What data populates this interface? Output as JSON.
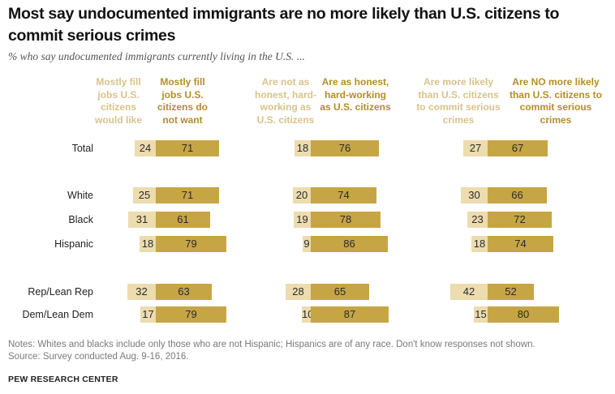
{
  "chart_data": {
    "type": "bar",
    "title": "Most say undocumented immigrants are no more likely than U.S. citizens to commit serious crimes",
    "subtitle": "% who say undocumented immigrants currently living in the U.S. ...",
    "categories": [
      "Total",
      "White",
      "Black",
      "Hispanic",
      "Rep/Lean Rep",
      "Dem/Lean Dem"
    ],
    "panels": [
      {
        "series": [
          {
            "name": "Mostly fill jobs U.S. citizens would like",
            "shade": "light",
            "values": [
              24,
              25,
              31,
              18,
              32,
              17
            ]
          },
          {
            "name": "Mostly fill jobs U.S. citizens do not want",
            "shade": "dark",
            "values": [
              71,
              71,
              61,
              79,
              63,
              79
            ]
          }
        ]
      },
      {
        "series": [
          {
            "name": "Are not as honest, hard-working as U.S. citizens",
            "shade": "light",
            "values": [
              18,
              20,
              19,
              9,
              28,
              10
            ]
          },
          {
            "name": "Are as honest, hard-working as U.S. citizens",
            "shade": "dark",
            "values": [
              76,
              74,
              78,
              86,
              65,
              87
            ]
          }
        ]
      },
      {
        "series": [
          {
            "name": "Are more likely than U.S. citizens to commit serious crimes",
            "shade": "light",
            "values": [
              27,
              30,
              23,
              18,
              42,
              15
            ]
          },
          {
            "name": "Are NO more likely than U.S. citizens to commit serious crimes",
            "shade": "dark",
            "values": [
              67,
              66,
              72,
              74,
              52,
              80
            ]
          }
        ]
      }
    ],
    "colors": {
      "light": "#ecdcae",
      "dark": "#c6a545",
      "light_text": "#d9c28c",
      "dark_text": "#b58c2a"
    },
    "notes": "Notes: Whites and blacks include only those who are not Hispanic; Hispanics are of any race. Don't know responses not shown.",
    "source": "Source: Survey conducted Aug. 9-16, 2016.",
    "credit": "PEW RESEARCH CENTER"
  }
}
